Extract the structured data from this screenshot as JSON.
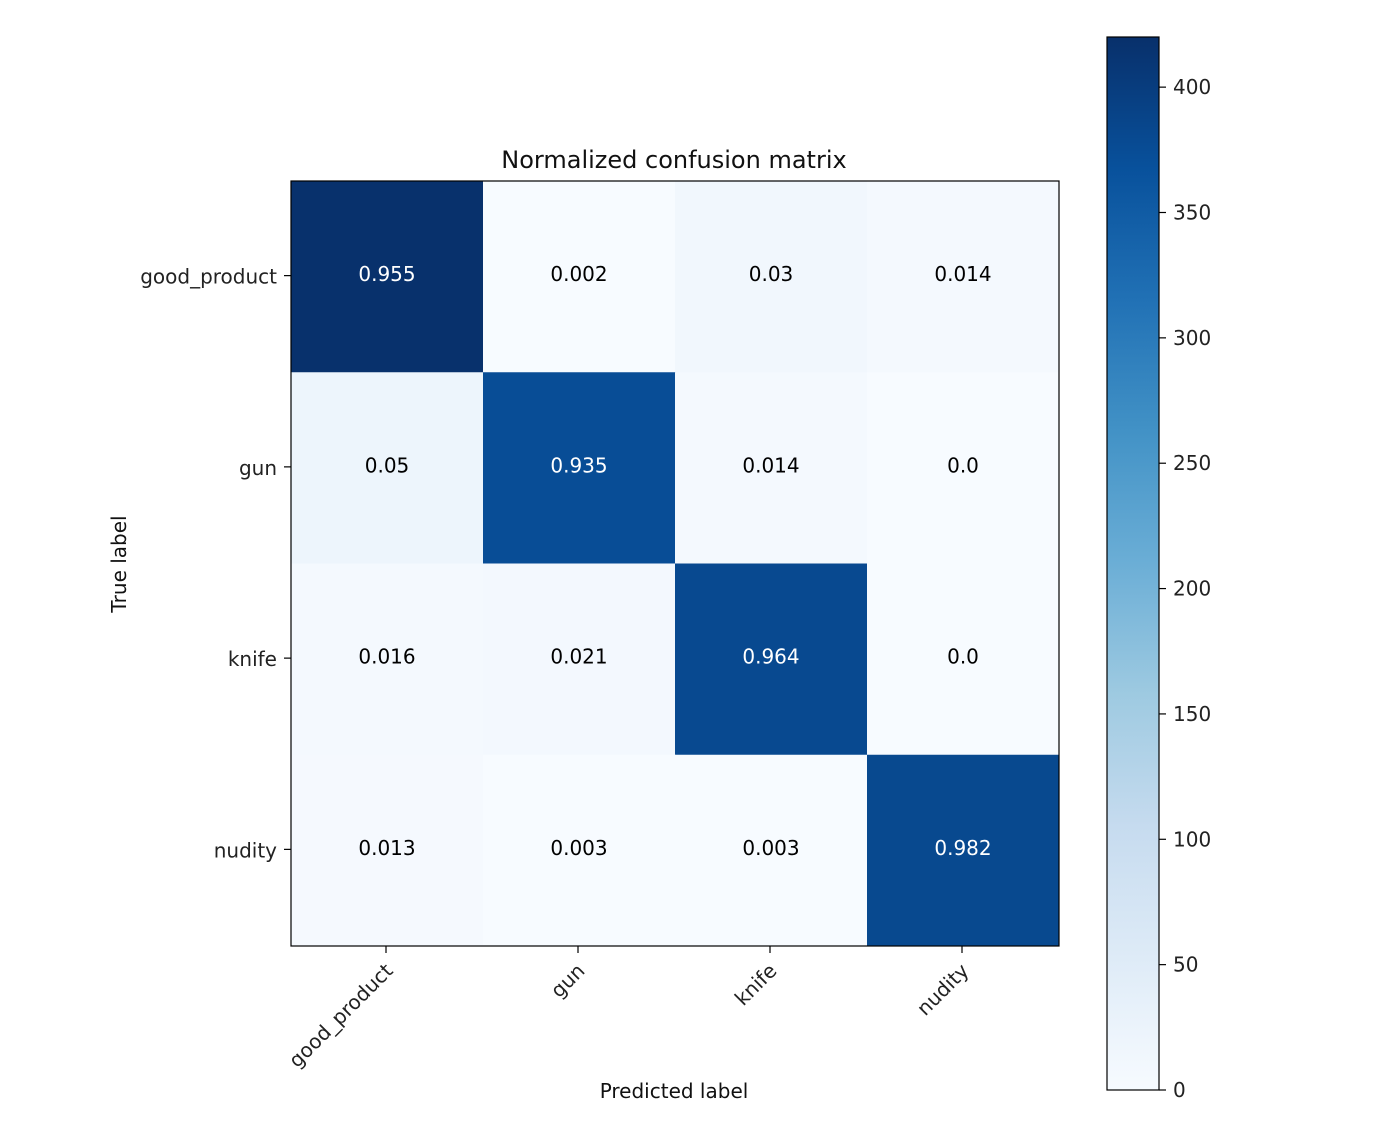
{
  "chart_data": {
    "type": "heatmap",
    "title": "Normalized confusion matrix",
    "xlabel": "Predicted label",
    "ylabel": "True label",
    "x_categories": [
      "good_product",
      "gun",
      "knife",
      "nudity"
    ],
    "y_categories": [
      "good_product",
      "gun",
      "knife",
      "nudity"
    ],
    "values": [
      [
        0.955,
        0.002,
        0.03,
        0.014
      ],
      [
        0.05,
        0.935,
        0.014,
        0.0
      ],
      [
        0.016,
        0.021,
        0.964,
        0.0
      ],
      [
        0.013,
        0.003,
        0.003,
        0.982
      ]
    ],
    "cell_labels": [
      [
        "0.955",
        "0.002",
        "0.03",
        "0.014"
      ],
      [
        "0.05",
        "0.935",
        "0.014",
        "0.0"
      ],
      [
        "0.016",
        "0.021",
        "0.964",
        "0.0"
      ],
      [
        "0.013",
        "0.003",
        "0.003",
        "0.982"
      ]
    ],
    "counts_estimated": [
      [
        419,
        1,
        13,
        6
      ],
      [
        20,
        374,
        6,
        0
      ],
      [
        7,
        9,
        380,
        0
      ],
      [
        5,
        1,
        1,
        381
      ]
    ],
    "colormap": "Blues",
    "color_range": [
      0,
      420
    ],
    "colorbar_ticks": [
      0,
      50,
      100,
      150,
      200,
      250,
      300,
      350,
      400
    ],
    "colorbar_tick_labels": [
      "0",
      "50",
      "100",
      "150",
      "200",
      "250",
      "300",
      "350",
      "400"
    ],
    "text_color_dark": "#000000",
    "text_color_light": "#ffffff",
    "text_threshold": 210
  }
}
